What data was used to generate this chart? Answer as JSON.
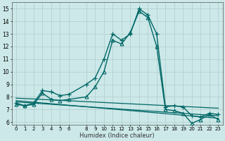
{
  "xlabel": "Humidex (Indice chaleur)",
  "bg_color": "#cce8e8",
  "grid_color": "#b0cccc",
  "line_color": "#006666",
  "xlim": [
    -0.5,
    23.5
  ],
  "ylim": [
    5.8,
    15.5
  ],
  "xticks": [
    0,
    1,
    2,
    3,
    4,
    5,
    6,
    8,
    9,
    10,
    11,
    12,
    13,
    14,
    15,
    16,
    17,
    18,
    19,
    20,
    21,
    22,
    23
  ],
  "yticks": [
    6,
    7,
    8,
    9,
    10,
    11,
    12,
    13,
    14,
    15
  ],
  "series_plus": {
    "x": [
      0,
      1,
      2,
      3,
      4,
      5,
      6,
      8,
      9,
      10,
      11,
      12,
      13,
      14,
      15,
      16,
      17,
      18,
      19,
      20,
      21,
      22,
      23
    ],
    "y": [
      7.5,
      7.3,
      7.5,
      8.5,
      8.4,
      8.1,
      8.2,
      9.0,
      9.5,
      11.0,
      13.0,
      12.5,
      13.0,
      15.0,
      14.5,
      13.0,
      7.2,
      7.3,
      7.2,
      6.5,
      6.4,
      6.7,
      6.6
    ],
    "marker": "+",
    "markersize": 4,
    "linewidth": 1.0
  },
  "series_triangle": {
    "x": [
      0,
      1,
      2,
      3,
      4,
      5,
      6,
      8,
      9,
      10,
      11,
      12,
      13,
      14,
      15,
      16,
      17,
      18,
      19,
      20,
      21,
      22,
      23
    ],
    "y": [
      7.4,
      7.3,
      7.4,
      8.3,
      7.8,
      7.7,
      7.8,
      8.0,
      8.8,
      10.0,
      12.5,
      12.2,
      13.1,
      14.8,
      14.3,
      12.0,
      7.0,
      6.9,
      6.7,
      5.9,
      6.2,
      6.6,
      6.2
    ],
    "marker": "^",
    "markersize": 3.5,
    "linewidth": 1.0
  },
  "trend1": {
    "x": [
      0,
      23
    ],
    "y": [
      7.9,
      7.1
    ]
  },
  "trend2": {
    "x": [
      0,
      23
    ],
    "y": [
      7.7,
      6.3
    ]
  },
  "trend3": {
    "x": [
      0,
      23
    ],
    "y": [
      7.6,
      6.5
    ]
  }
}
